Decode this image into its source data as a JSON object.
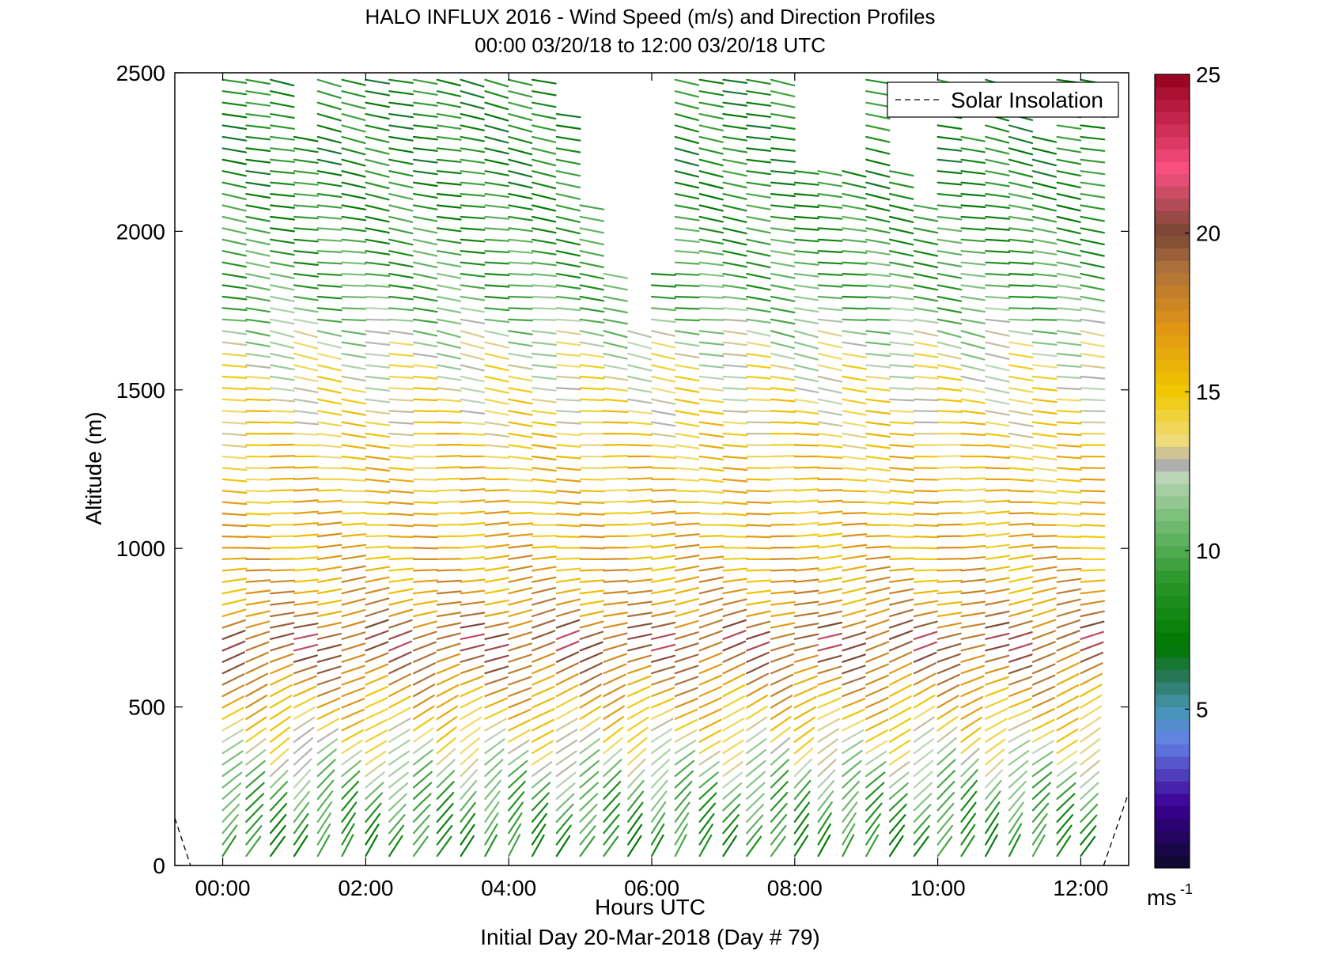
{
  "chart_data": {
    "type": "wind-barb-profile",
    "title": "HALO INFLUX 2016 - Wind Speed (m/s) and Direction Profiles",
    "subtitle": "00:00 03/20/18 to 12:00 03/20/18  UTC",
    "xlabel": "Hours UTC",
    "xlabel2": "Initial Day 20-Mar-2018 (Day # 79)",
    "ylabel": "Altitude (m)",
    "xlim": [
      -0.67,
      12.67
    ],
    "ylim": [
      0,
      2500
    ],
    "x_ticks": [
      0,
      2,
      4,
      6,
      8,
      10,
      12
    ],
    "x_tick_labels": [
      "00:00",
      "02:00",
      "04:00",
      "06:00",
      "08:00",
      "10:00",
      "12:00"
    ],
    "y_ticks": [
      0,
      500,
      1000,
      1500,
      2000,
      2500
    ],
    "y_tick_labels": [
      "0",
      "500",
      "1000",
      "1500",
      "2000",
      "2500"
    ],
    "colorbar": {
      "min": 0,
      "max": 25,
      "ticks": [
        5,
        10,
        15,
        20,
        25
      ],
      "tick_labels": [
        "5",
        "10",
        "15",
        "20",
        "25"
      ],
      "unit_label": "ms",
      "unit_exponent": "-1"
    },
    "legend": {
      "position": "top-right",
      "entries": [
        "Solar Insolation"
      ]
    },
    "grid": false,
    "profile_times_hours": [
      0.0,
      0.33,
      0.67,
      1.0,
      1.33,
      1.67,
      2.0,
      2.33,
      2.67,
      3.0,
      3.33,
      3.67,
      4.0,
      4.33,
      4.67,
      5.0,
      5.33,
      5.67,
      6.0,
      6.33,
      6.67,
      7.0,
      7.33,
      7.67,
      8.0,
      8.33,
      8.67,
      9.0,
      9.33,
      9.67,
      10.0,
      10.33,
      10.67,
      11.0,
      11.33,
      11.67,
      12.0
    ],
    "altitude_step_m": 36,
    "profile_max_altitude_m": [
      2500,
      2500,
      2500,
      2300,
      2500,
      2500,
      2500,
      2500,
      2500,
      2500,
      2500,
      2500,
      2500,
      2500,
      2400,
      2100,
      1880,
      1720,
      1870,
      2500,
      2500,
      2500,
      2500,
      2500,
      2200,
      2200,
      2200,
      2500,
      2200,
      2100,
      2500,
      2300,
      2500,
      2450,
      2300,
      2500,
      2500
    ],
    "speed_profile_ms": [
      {
        "alt": 0,
        "speed": 8
      },
      {
        "alt": 200,
        "speed": 10
      },
      {
        "alt": 400,
        "speed": 14
      },
      {
        "alt": 600,
        "speed": 18
      },
      {
        "alt": 700,
        "speed": 20
      },
      {
        "alt": 800,
        "speed": 17
      },
      {
        "alt": 1000,
        "speed": 16
      },
      {
        "alt": 1300,
        "speed": 15
      },
      {
        "alt": 1600,
        "speed": 13
      },
      {
        "alt": 1800,
        "speed": 10
      },
      {
        "alt": 2200,
        "speed": 8
      },
      {
        "alt": 2500,
        "speed": 8
      }
    ],
    "solar_insolation_segments": [
      {
        "x": [
          -0.67,
          -0.45
        ],
        "y": [
          150,
          0
        ]
      },
      {
        "x": [
          12.32,
          12.67
        ],
        "y": [
          0,
          230
        ]
      }
    ]
  }
}
